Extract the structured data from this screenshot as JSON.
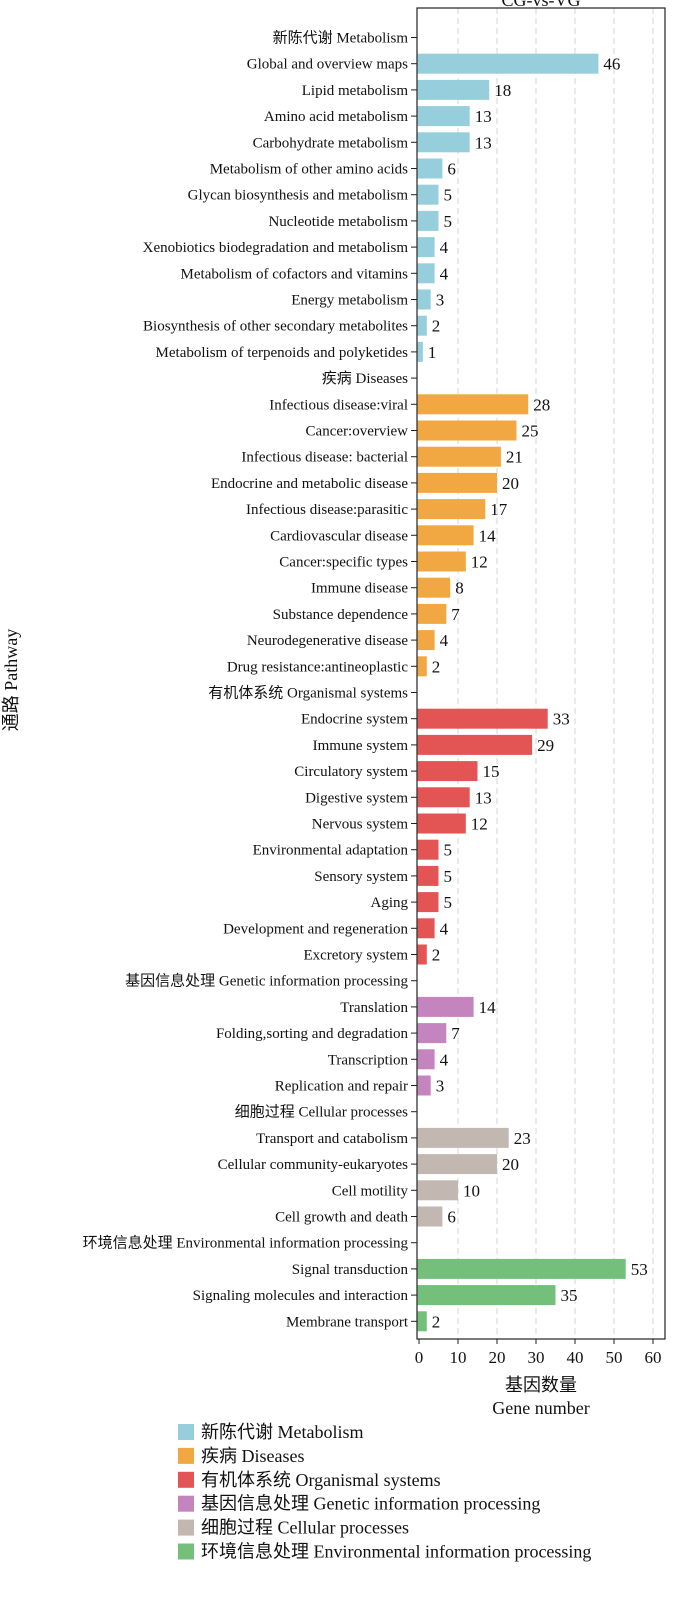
{
  "chart_data": {
    "type": "bar",
    "orientation": "horizontal",
    "title": "CG-vs-VG",
    "xlabel_cn": "基因数量",
    "xlabel_en": "Gene number",
    "ylabel": "通路 Pathway",
    "xlim": [
      0,
      62
    ],
    "xticks": [
      0,
      10,
      20,
      30,
      40,
      50,
      60
    ],
    "grid": "vertical dashed",
    "groups": [
      {
        "key": "metabolism",
        "name": "新陈代谢 Metabolism",
        "color": "#96CFDB",
        "categories": [
          "Global and overview maps",
          "Lipid metabolism",
          "Amino acid metabolism",
          "Carbohydrate metabolism",
          "Metabolism of other amino acids",
          "Glycan biosynthesis and metabolism",
          "Nucleotide metabolism",
          "Xenobiotics biodegradation and metabolism",
          "Metabolism of cofactors and vitamins",
          "Energy metabolism",
          "Biosynthesis of other secondary metabolites",
          "Metabolism of terpenoids and polyketides"
        ],
        "values": [
          46,
          18,
          13,
          13,
          6,
          5,
          5,
          4,
          4,
          3,
          2,
          1
        ]
      },
      {
        "key": "diseases",
        "name": "疾病 Diseases",
        "color": "#F2A842",
        "categories": [
          "Infectious disease:viral",
          "Cancer:overview",
          "Infectious disease: bacterial",
          "Endocrine and metabolic disease",
          "Infectious disease:parasitic",
          "Cardiovascular disease",
          "Cancer:specific types",
          "Immune disease",
          "Substance dependence",
          "Neurodegenerative disease",
          "Drug resistance:antineoplastic"
        ],
        "values": [
          28,
          25,
          21,
          20,
          17,
          14,
          12,
          8,
          7,
          4,
          2
        ]
      },
      {
        "key": "organismal",
        "name": "有机体系统 Organismal systems",
        "color": "#E35455",
        "categories": [
          "Endocrine system",
          "Immune system",
          "Circulatory system",
          "Digestive system",
          "Nervous system",
          "Environmental adaptation",
          "Sensory system",
          "Aging",
          "Development and regeneration",
          "Excretory system"
        ],
        "values": [
          33,
          29,
          15,
          13,
          12,
          5,
          5,
          5,
          4,
          2
        ]
      },
      {
        "key": "genetic",
        "name": "基因信息处理 Genetic information processing",
        "color": "#C484BE",
        "categories": [
          "Translation",
          "Folding,sorting and degradation",
          "Transcription",
          "Replication and repair"
        ],
        "values": [
          14,
          7,
          4,
          3
        ]
      },
      {
        "key": "cellular",
        "name": "细胞过程 Cellular processes",
        "color": "#C3B7B2",
        "categories": [
          "Transport and catabolism",
          "Cellular community-eukaryotes",
          "Cell motility",
          "Cell growth and death"
        ],
        "values": [
          23,
          20,
          10,
          6
        ]
      },
      {
        "key": "environmental",
        "name": "环境信息处理 Environmental information processing",
        "color": "#74C07A",
        "categories": [
          "Signal transduction",
          "Signaling molecules and interaction",
          "Membrane transport"
        ],
        "values": [
          53,
          35,
          2
        ]
      }
    ]
  }
}
